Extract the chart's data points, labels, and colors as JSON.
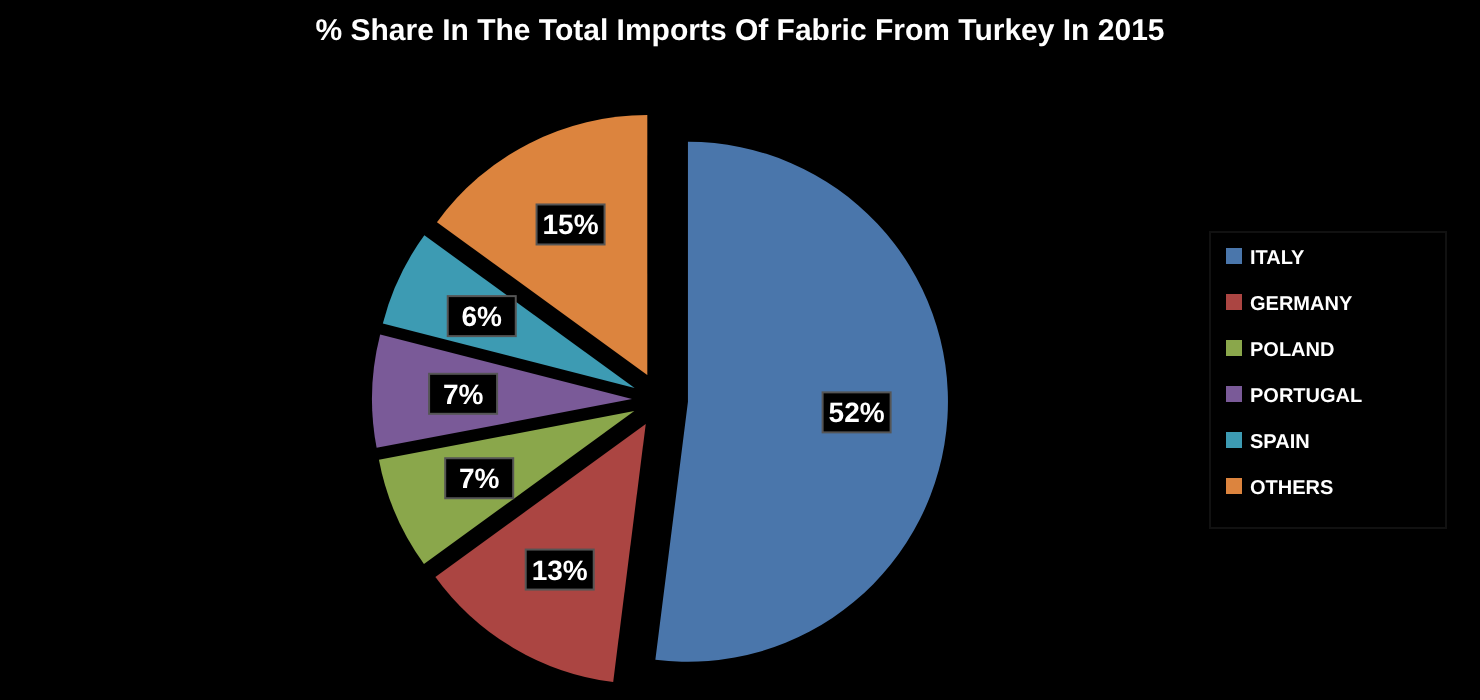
{
  "chart_data": {
    "type": "pie",
    "title": "% Share In The Total Imports Of Fabric From Turkey In 2015",
    "categories": [
      "ITALY",
      "GERMANY",
      "POLAND",
      "PORTUGAL",
      "SPAIN",
      "OTHERS"
    ],
    "values": [
      52,
      13,
      7,
      7,
      6,
      15
    ],
    "value_labels": [
      "52%",
      "13%",
      "7%",
      "7%",
      "6%",
      "15%"
    ],
    "colors": [
      "#4a76ab",
      "#ab4542",
      "#8aa74b",
      "#7a5a98",
      "#3d9bb3",
      "#dc843e"
    ],
    "legend": "right"
  }
}
